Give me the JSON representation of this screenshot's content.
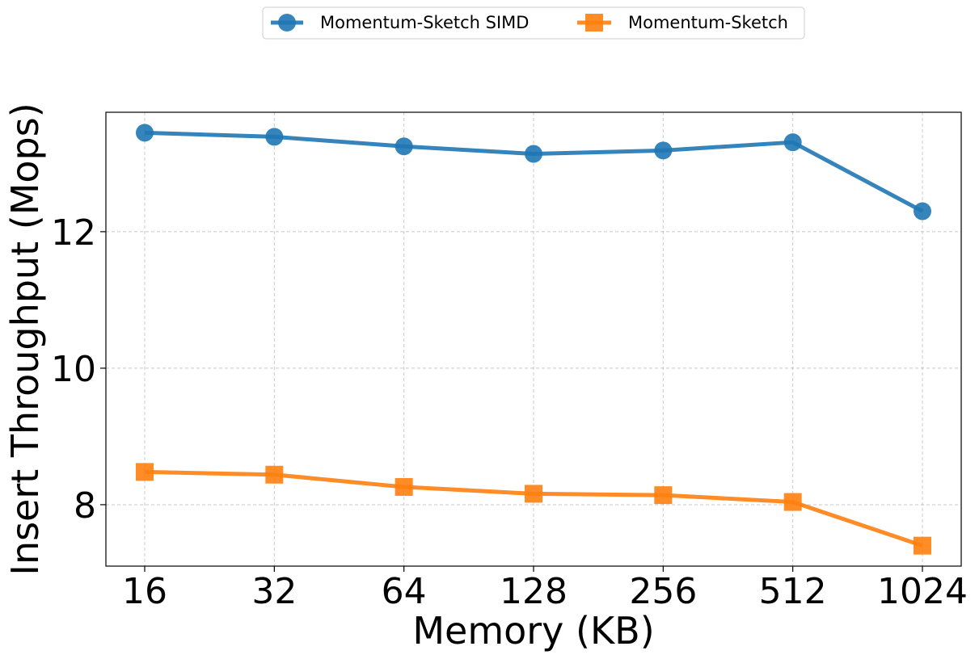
{
  "chart_data": {
    "type": "line",
    "xlabel": "Memory (KB)",
    "ylabel": "Insert Throughput (Mops)",
    "categories": [
      "16",
      "32",
      "64",
      "128",
      "256",
      "512",
      "1024"
    ],
    "yticks": [
      8,
      10,
      12
    ],
    "ylim": [
      7.1,
      13.75
    ],
    "grid": true,
    "legend_position": "top-center",
    "series": [
      {
        "name": "Momentum-Sketch SIMD",
        "marker": "circle",
        "color": "#1f77b4",
        "values": [
          13.45,
          13.39,
          13.25,
          13.14,
          13.19,
          13.31,
          12.3
        ]
      },
      {
        "name": "Momentum-Sketch",
        "marker": "square",
        "color": "#ff7f0e",
        "values": [
          8.48,
          8.44,
          8.26,
          8.16,
          8.14,
          8.04,
          7.4
        ]
      }
    ]
  }
}
